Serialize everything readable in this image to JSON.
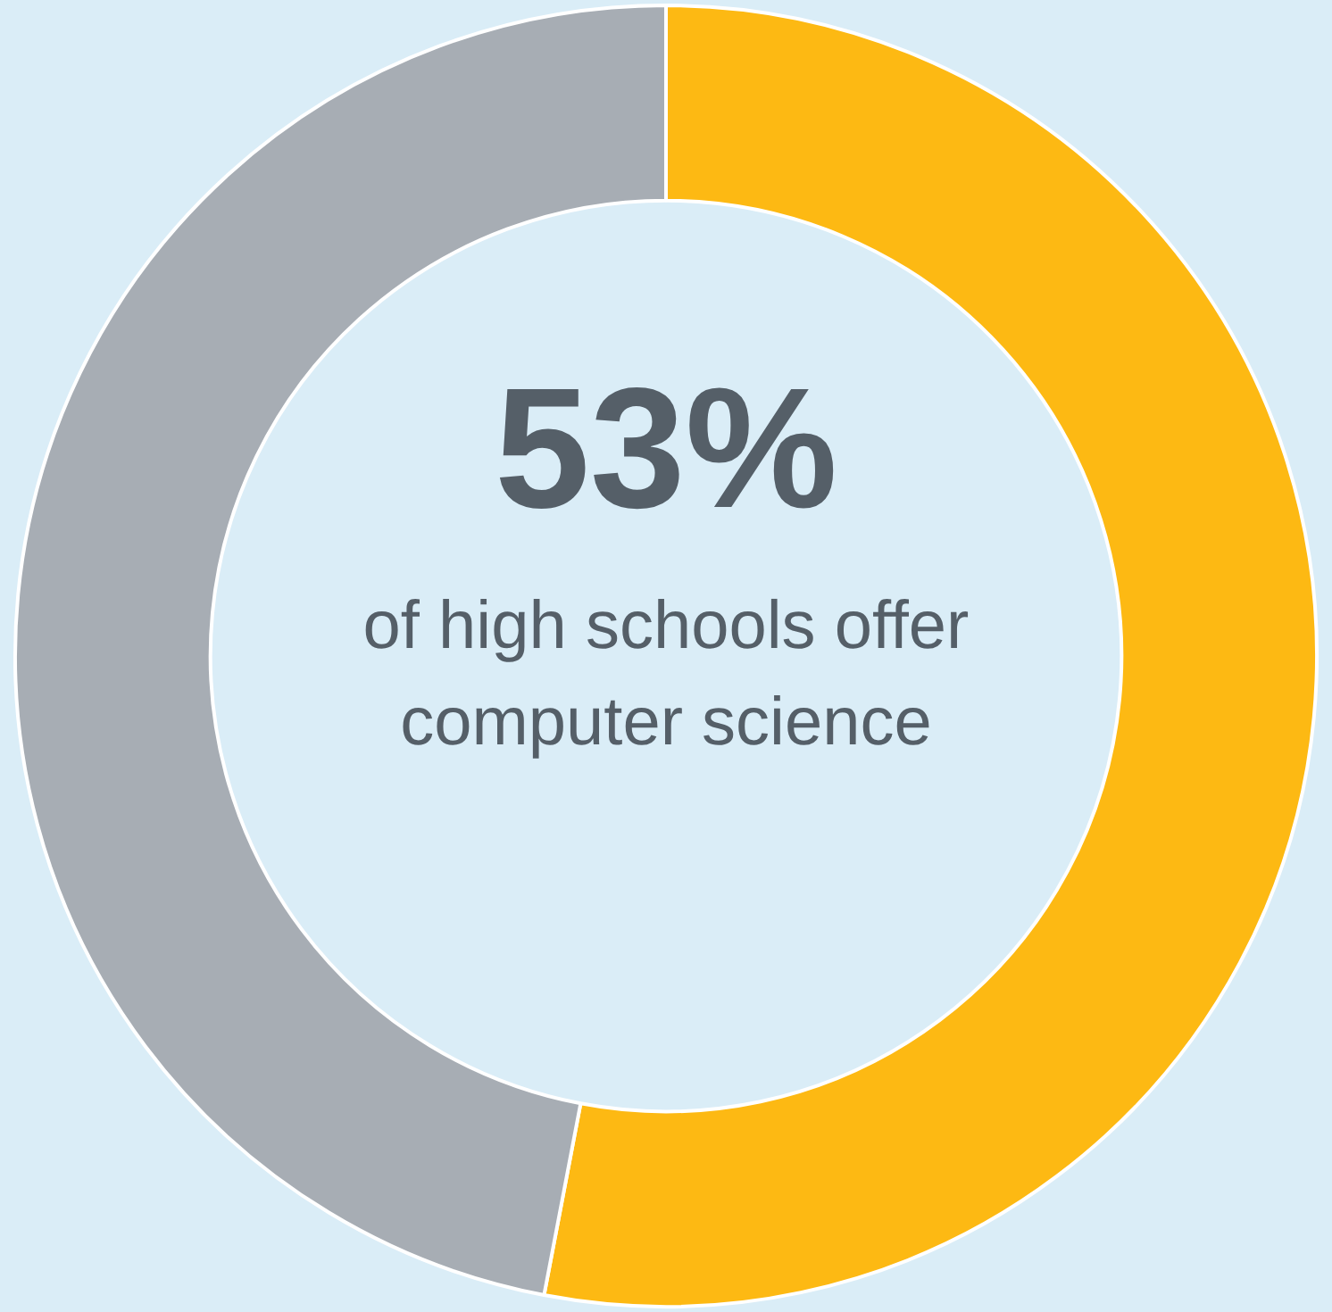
{
  "chart_data": {
    "type": "donut",
    "categories": [
      null,
      null
    ],
    "values": [
      53,
      47
    ],
    "colors": [
      "#fdb913",
      "#a7adb4"
    ],
    "annotations": [
      "53%",
      "of high schools offer computer science"
    ],
    "legend": false
  }
}
